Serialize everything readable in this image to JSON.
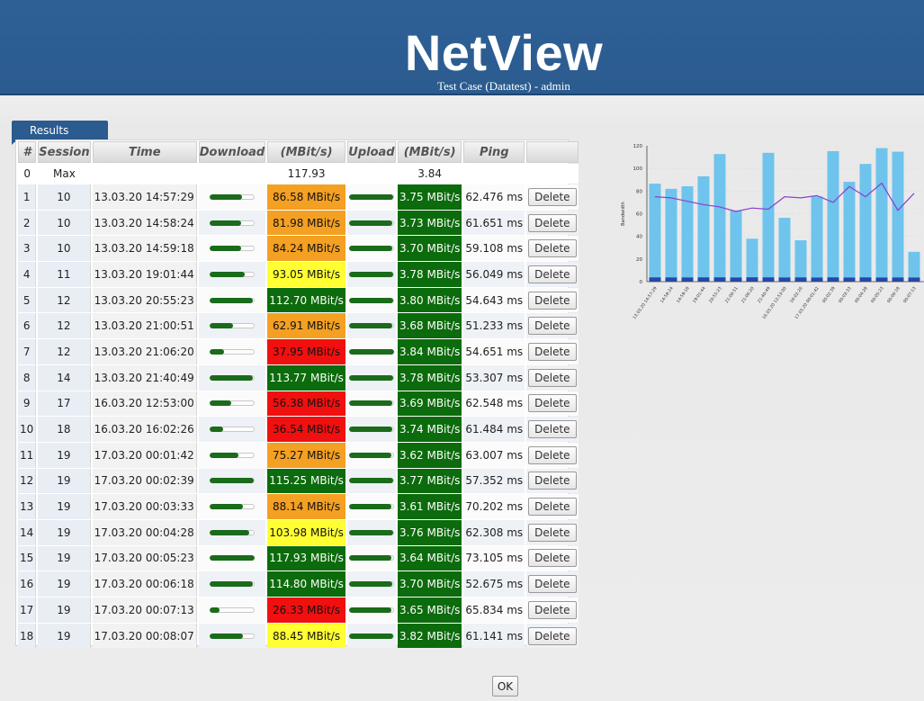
{
  "app": {
    "title": "NetView",
    "subtitle": "Test Case (Datatest) - admin"
  },
  "results_tab": {
    "label": "Results"
  },
  "table": {
    "headers": [
      "#",
      "Session",
      "Time",
      "Download",
      "(MBit/s)",
      "Upload",
      "(MBit/s)",
      "Ping",
      ""
    ],
    "max_row": {
      "num": "0",
      "session": "Max",
      "download": "117.93",
      "upload": "3.84"
    },
    "delete_label": "Delete",
    "rows": [
      {
        "num": "1",
        "session": "10",
        "time": "13.03.20 14:57:29",
        "down": "86.58 MBit/s",
        "down_value": 86.58,
        "down_color": "#f4a023",
        "up": "3.75 MBit/s",
        "up_value": 3.75,
        "ping": "62.476 ms"
      },
      {
        "num": "2",
        "session": "10",
        "time": "13.03.20 14:58:24",
        "down": "81.98 MBit/s",
        "down_value": 81.98,
        "down_color": "#f4a023",
        "up": "3.73 MBit/s",
        "up_value": 3.73,
        "ping": "61.651 ms"
      },
      {
        "num": "3",
        "session": "10",
        "time": "13.03.20 14:59:18",
        "down": "84.24 MBit/s",
        "down_value": 84.24,
        "down_color": "#f4a023",
        "up": "3.70 MBit/s",
        "up_value": 3.7,
        "ping": "59.108 ms"
      },
      {
        "num": "4",
        "session": "11",
        "time": "13.03.20 19:01:44",
        "down": "93.05 MBit/s",
        "down_value": 93.05,
        "down_color": "#ffff33",
        "up": "3.78 MBit/s",
        "up_value": 3.78,
        "ping": "56.049 ms"
      },
      {
        "num": "5",
        "session": "12",
        "time": "13.03.20 20:55:23",
        "down": "112.70 MBit/s",
        "down_value": 112.7,
        "down_color": "#0c6b0c",
        "up": "3.80 MBit/s",
        "up_value": 3.8,
        "ping": "54.643 ms"
      },
      {
        "num": "6",
        "session": "12",
        "time": "13.03.20 21:00:51",
        "down": "62.91 MBit/s",
        "down_value": 62.91,
        "down_color": "#f4a023",
        "up": "3.68 MBit/s",
        "up_value": 3.68,
        "ping": "51.233 ms"
      },
      {
        "num": "7",
        "session": "12",
        "time": "13.03.20 21:06:20",
        "down": "37.95 MBit/s",
        "down_value": 37.95,
        "down_color": "#f01010",
        "up": "3.84 MBit/s",
        "up_value": 3.84,
        "ping": "54.651 ms"
      },
      {
        "num": "8",
        "session": "14",
        "time": "13.03.20 21:40:49",
        "down": "113.77 MBit/s",
        "down_value": 113.77,
        "down_color": "#0c6b0c",
        "up": "3.78 MBit/s",
        "up_value": 3.78,
        "ping": "53.307 ms"
      },
      {
        "num": "9",
        "session": "17",
        "time": "16.03.20 12:53:00",
        "down": "56.38 MBit/s",
        "down_value": 56.38,
        "down_color": "#f01010",
        "up": "3.69 MBit/s",
        "up_value": 3.69,
        "ping": "62.548 ms"
      },
      {
        "num": "10",
        "session": "18",
        "time": "16.03.20 16:02:26",
        "down": "36.54 MBit/s",
        "down_value": 36.54,
        "down_color": "#f01010",
        "up": "3.74 MBit/s",
        "up_value": 3.74,
        "ping": "61.484 ms"
      },
      {
        "num": "11",
        "session": "19",
        "time": "17.03.20 00:01:42",
        "down": "75.27 MBit/s",
        "down_value": 75.27,
        "down_color": "#f4a023",
        "up": "3.62 MBit/s",
        "up_value": 3.62,
        "ping": "63.007 ms"
      },
      {
        "num": "12",
        "session": "19",
        "time": "17.03.20 00:02:39",
        "down": "115.25 MBit/s",
        "down_value": 115.25,
        "down_color": "#0c6b0c",
        "up": "3.77 MBit/s",
        "up_value": 3.77,
        "ping": "57.352 ms"
      },
      {
        "num": "13",
        "session": "19",
        "time": "17.03.20 00:03:33",
        "down": "88.14 MBit/s",
        "down_value": 88.14,
        "down_color": "#f4a023",
        "up": "3.61 MBit/s",
        "up_value": 3.61,
        "ping": "70.202 ms"
      },
      {
        "num": "14",
        "session": "19",
        "time": "17.03.20 00:04:28",
        "down": "103.98 MBit/s",
        "down_value": 103.98,
        "down_color": "#ffff33",
        "up": "3.76 MBit/s",
        "up_value": 3.76,
        "ping": "62.308 ms"
      },
      {
        "num": "15",
        "session": "19",
        "time": "17.03.20 00:05:23",
        "down": "117.93 MBit/s",
        "down_value": 117.93,
        "down_color": "#0c6b0c",
        "up": "3.64 MBit/s",
        "up_value": 3.64,
        "ping": "73.105 ms"
      },
      {
        "num": "16",
        "session": "19",
        "time": "17.03.20 00:06:18",
        "down": "114.80 MBit/s",
        "down_value": 114.8,
        "down_color": "#0c6b0c",
        "up": "3.70 MBit/s",
        "up_value": 3.7,
        "ping": "52.675 ms"
      },
      {
        "num": "17",
        "session": "19",
        "time": "17.03.20 00:07:13",
        "down": "26.33 MBit/s",
        "down_value": 26.33,
        "down_color": "#f01010",
        "up": "3.65 MBit/s",
        "up_value": 3.65,
        "ping": "65.834 ms"
      },
      {
        "num": "18",
        "session": "19",
        "time": "17.03.20 00:08:07",
        "down": "88.45 MBit/s",
        "down_value": 88.45,
        "down_color": "#ffff33",
        "up": "3.82 MBit/s",
        "up_value": 3.82,
        "ping": "61.141 ms"
      }
    ]
  },
  "ok_button": {
    "label": "OK"
  },
  "chart_data": {
    "type": "bar",
    "ylabel": "Bandwidth",
    "ylim": [
      0,
      120
    ],
    "yticks": [
      0,
      20,
      40,
      60,
      80,
      100,
      120
    ],
    "categories": [
      "13.03.20 14:57:29",
      "14:58:24",
      "14:59:18",
      "19:01:44",
      "20:55:23",
      "21:00:51",
      "21:06:20",
      "21:40:49",
      "16.03.20 12:53:00",
      "16:02:26",
      "17.03.20 00:01:42",
      "00:02:39",
      "00:03:33",
      "00:04:28",
      "00:05:23",
      "00:06:18",
      "00:07:13"
    ],
    "series": [
      {
        "name": "Download",
        "color": "#6ec4ec",
        "values": [
          86.58,
          81.98,
          84.24,
          93.05,
          112.7,
          62.91,
          37.95,
          113.77,
          56.38,
          36.54,
          75.27,
          115.25,
          88.14,
          103.98,
          117.93,
          114.8,
          26.33
        ]
      },
      {
        "name": "Upload",
        "color": "#2448a8",
        "values": [
          3.75,
          3.73,
          3.7,
          3.78,
          3.8,
          3.68,
          3.84,
          3.78,
          3.69,
          3.74,
          3.62,
          3.77,
          3.61,
          3.76,
          3.64,
          3.7,
          3.65
        ]
      },
      {
        "name": "Ping",
        "color": "#8a3fd0",
        "type": "line",
        "values": [
          75,
          74,
          71,
          68,
          66,
          62,
          65,
          64,
          75,
          74,
          76,
          70,
          84,
          75,
          87,
          63,
          78
        ]
      }
    ]
  }
}
